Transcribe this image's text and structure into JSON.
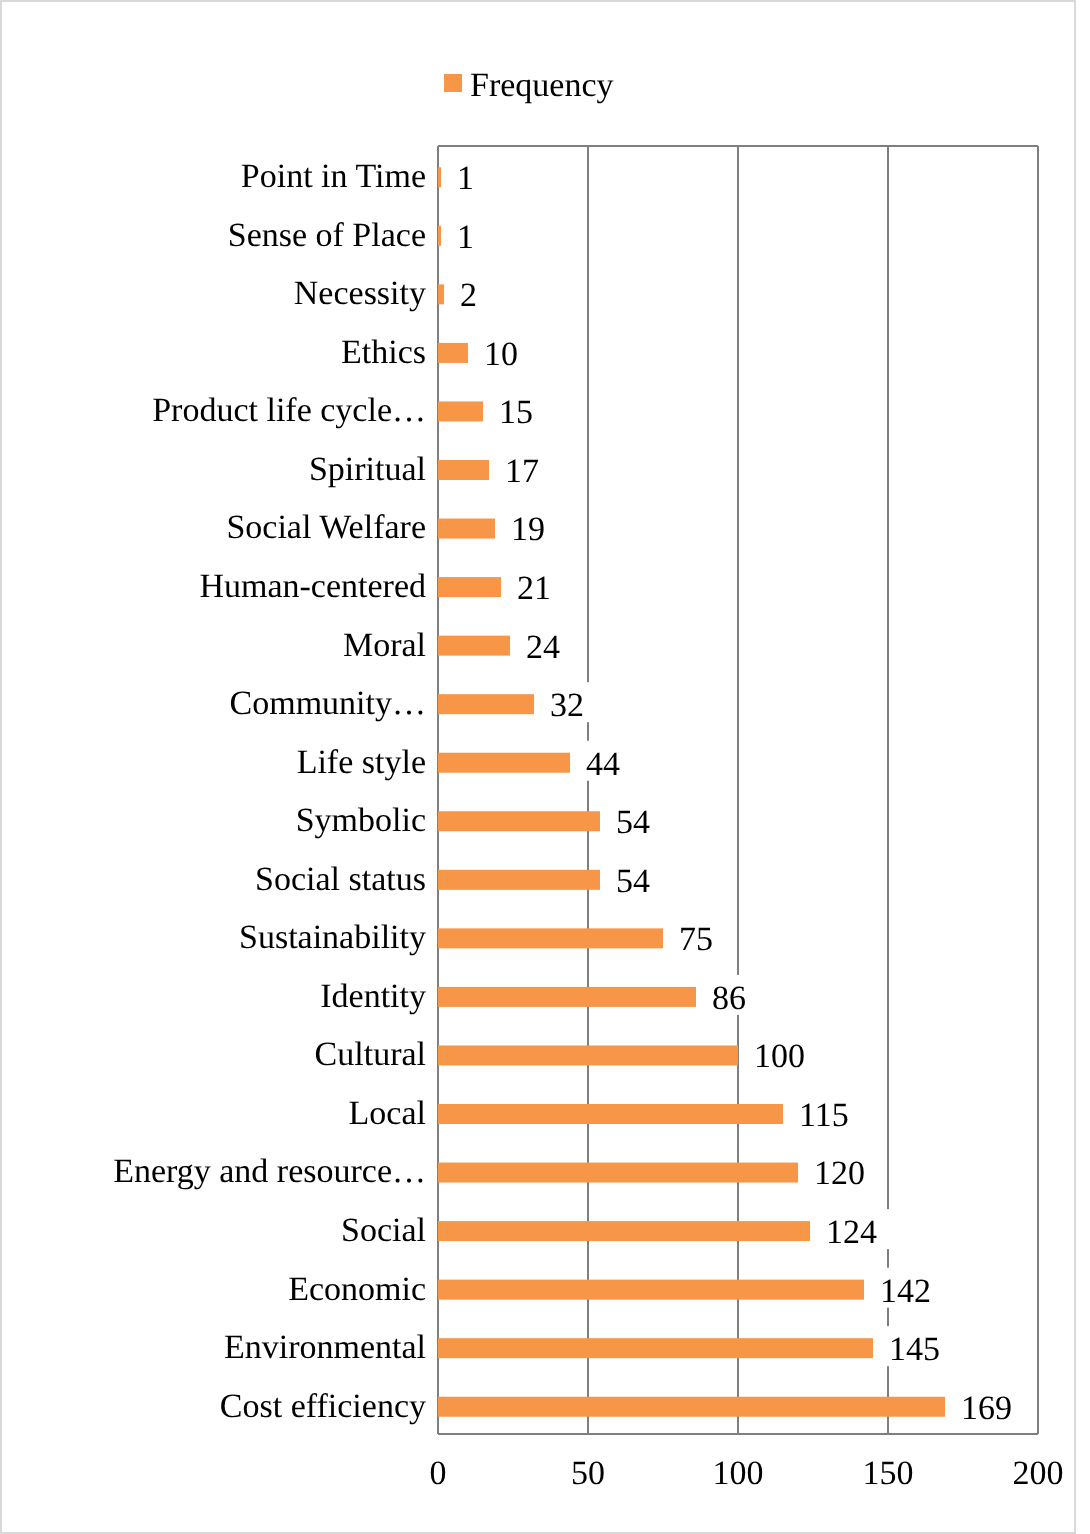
{
  "chart_data": {
    "type": "bar",
    "orientation": "horizontal",
    "categories": [
      "Point in Time",
      "Sense of Place",
      "Necessity",
      "Ethics",
      "Product life cycle…",
      "Spiritual",
      "Social Welfare",
      "Human-centered",
      "Moral",
      "Community…",
      "Life style",
      "Symbolic",
      "Social status",
      "Sustainability",
      "Identity",
      "Cultural",
      "Local",
      "Energy and resource…",
      "Social",
      "Economic",
      "Environmental",
      "Cost efficiency"
    ],
    "series": [
      {
        "name": "Frequency",
        "color": "#f79646",
        "values": [
          1,
          1,
          2,
          10,
          15,
          17,
          19,
          21,
          24,
          32,
          44,
          54,
          54,
          75,
          86,
          100,
          115,
          120,
          124,
          142,
          145,
          169
        ]
      }
    ],
    "xlim": [
      0,
      200
    ],
    "xticks": [
      0,
      50,
      100,
      150,
      200
    ],
    "grid": "x",
    "legend": "top",
    "data_labels": true
  }
}
